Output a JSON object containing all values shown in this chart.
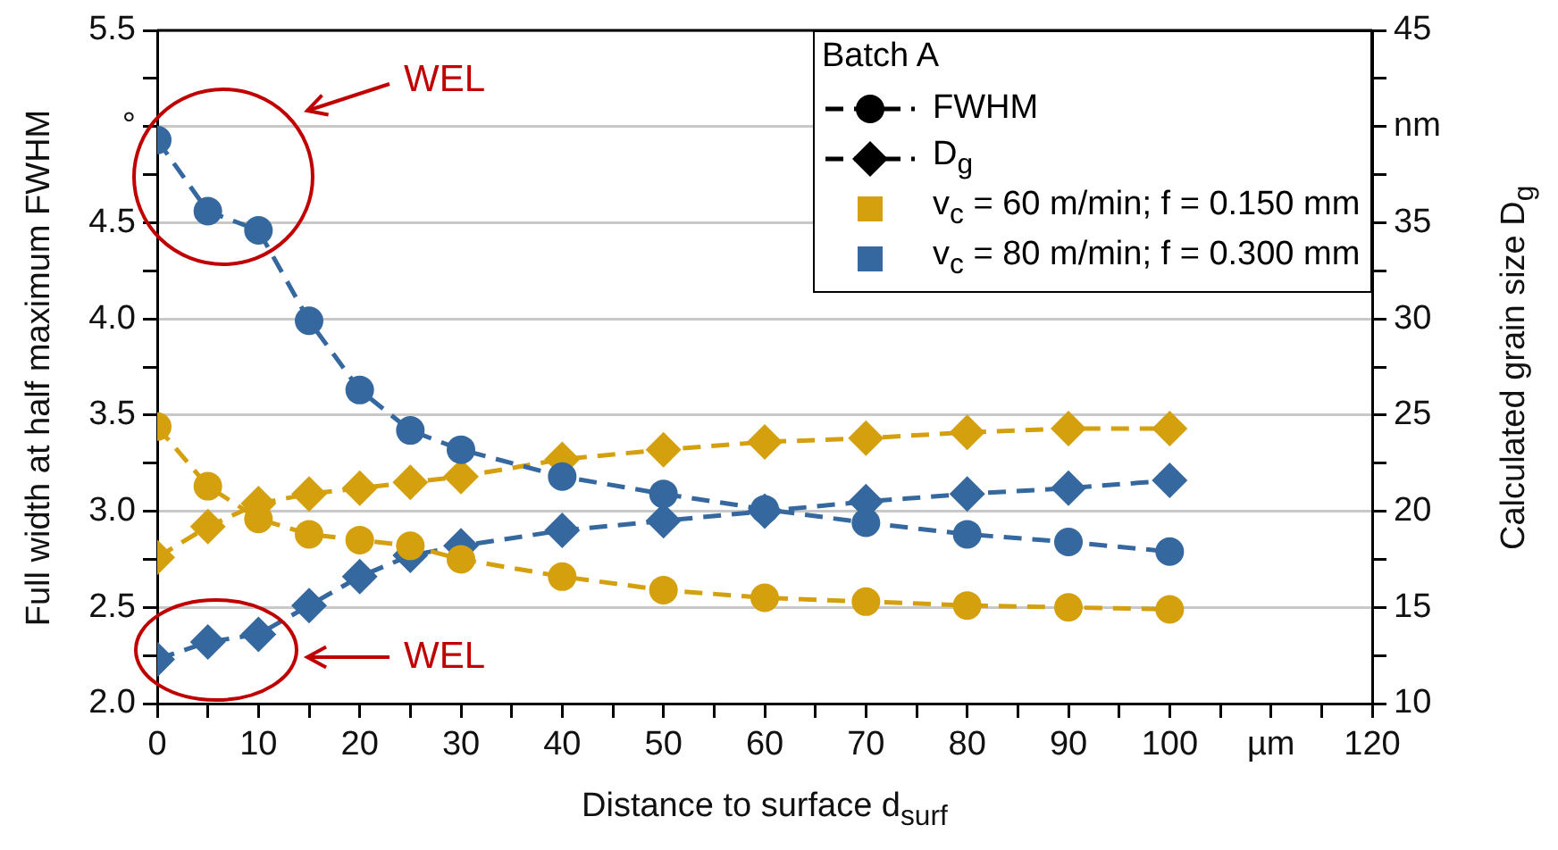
{
  "chart_data": {
    "type": "line",
    "xlabel": "Distance to surface d$_{surf}$",
    "ylabel": "Full width at half maximum FWHM",
    "y2label": "Calculated grain size D$_{g}$",
    "legend_title": "Batch A",
    "legend": "top right",
    "grid": "y",
    "x": [
      0,
      5,
      10,
      15,
      20,
      25,
      30,
      40,
      50,
      60,
      70,
      80,
      90,
      100
    ],
    "xlim": [
      0,
      120
    ],
    "xticks": [
      0,
      {
        "value": 5,
        "label": null
      },
      10,
      {
        "value": 15,
        "label": null
      },
      20,
      {
        "value": 25,
        "label": null
      },
      30,
      {
        "value": 35,
        "label": null
      },
      40,
      {
        "value": 45,
        "label": null
      },
      50,
      {
        "value": 55,
        "label": null
      },
      60,
      {
        "value": 65,
        "label": null
      },
      70,
      {
        "value": 75,
        "label": null
      },
      80,
      {
        "value": 85,
        "label": null
      },
      90,
      {
        "value": 95,
        "label": null
      },
      100,
      {
        "value": 105,
        "label": null
      },
      {
        "value": 110,
        "label": "µm"
      },
      {
        "value": 115,
        "label": null
      },
      120
    ],
    "ylim": [
      2.0,
      5.5
    ],
    "yticks": [
      {
        "value": 2,
        "label": "2.0"
      },
      {
        "value": 2.25,
        "label": null
      },
      {
        "value": 2.5,
        "label": "2.5"
      },
      {
        "value": 2.75,
        "label": null
      },
      {
        "value": 3,
        "label": "3.0"
      },
      {
        "value": 3.25,
        "label": null
      },
      {
        "value": 3.5,
        "label": "3.5"
      },
      {
        "value": 3.75,
        "label": null
      },
      {
        "value": 4,
        "label": "4.0"
      },
      {
        "value": 4.25,
        "label": null
      },
      {
        "value": 4.5,
        "label": "4.5"
      },
      {
        "value": 4.75,
        "label": null
      },
      {
        "value": 5,
        "label": "°"
      },
      {
        "value": 5.25,
        "label": null
      },
      {
        "value": 5.5,
        "label": "5.5"
      }
    ],
    "y2lim": [
      10,
      45
    ],
    "y2ticks": [
      10,
      {
        "value": 12.5,
        "label": null
      },
      15,
      {
        "value": 17.5,
        "label": null
      },
      20,
      {
        "value": 22.5,
        "label": null
      },
      25,
      {
        "value": 27.5,
        "label": null
      },
      30,
      {
        "value": 32.5,
        "label": null
      },
      35,
      {
        "value": 37.5,
        "label": null
      },
      {
        "value": 40,
        "label": "nm"
      },
      {
        "value": 42.5,
        "label": null
      },
      45
    ],
    "series": [
      {
        "name": "FWHM",
        "color": "#000000",
        "marker": "circle",
        "line_style": "dashed",
        "values": [
          null,
          null,
          null,
          null,
          null,
          null,
          null,
          null,
          null,
          null,
          null,
          null,
          null,
          null
        ]
      },
      {
        "name": "D$_{g}$",
        "color": "#000000",
        "marker": "diamond",
        "line_style": "dashed",
        "values": [
          null,
          null,
          null,
          null,
          null,
          null,
          null,
          null,
          null,
          null,
          null,
          null,
          null,
          null
        ]
      },
      {
        "name": "v$_{c}$ = 60 m/min; f = 0.150 mm",
        "color": "#d4a00e",
        "marker": "square",
        "values": [
          null,
          null,
          null,
          null,
          null,
          null,
          null,
          null,
          null,
          null,
          null,
          null,
          null,
          null
        ]
      },
      {
        "name": "v$_{c}$ = 80 m/min; f = 0.300 mm",
        "color": "#35689f",
        "marker": "square",
        "values": [
          null,
          null,
          null,
          null,
          null,
          null,
          null,
          null,
          null,
          null,
          null,
          null,
          null,
          null
        ]
      },
      {
        "color": "#d4a00e",
        "marker": "circle",
        "line_style": "dashed",
        "values": [
          3.44,
          3.13,
          2.96,
          2.88,
          2.85,
          2.82,
          2.75,
          2.66,
          2.59,
          2.55,
          2.53,
          2.51,
          2.5,
          2.49
        ]
      },
      {
        "color": "#35689f",
        "marker": "circle",
        "line_style": "dashed",
        "values": [
          4.93,
          4.56,
          4.46,
          3.99,
          3.63,
          3.42,
          3.32,
          3.18,
          3.09,
          3.01,
          2.94,
          2.88,
          2.84,
          2.79
        ]
      },
      {
        "color": "#d4a00e",
        "marker": "diamond",
        "line_style": "dashed",
        "axis": "y2",
        "values": [
          17.6,
          19.2,
          20.4,
          20.9,
          21.2,
          21.5,
          21.8,
          22.7,
          23.2,
          23.6,
          23.8,
          24.1,
          24.3,
          24.3
        ]
      },
      {
        "color": "#35689f",
        "marker": "diamond",
        "line_style": "dashed",
        "axis": "y2",
        "values": [
          12.3,
          13.2,
          13.6,
          15.1,
          16.6,
          17.7,
          18.2,
          19.0,
          19.5,
          20.0,
          20.5,
          20.9,
          21.2,
          21.6
        ]
      }
    ],
    "annotations": [
      "WEL",
      "WEL"
    ]
  }
}
